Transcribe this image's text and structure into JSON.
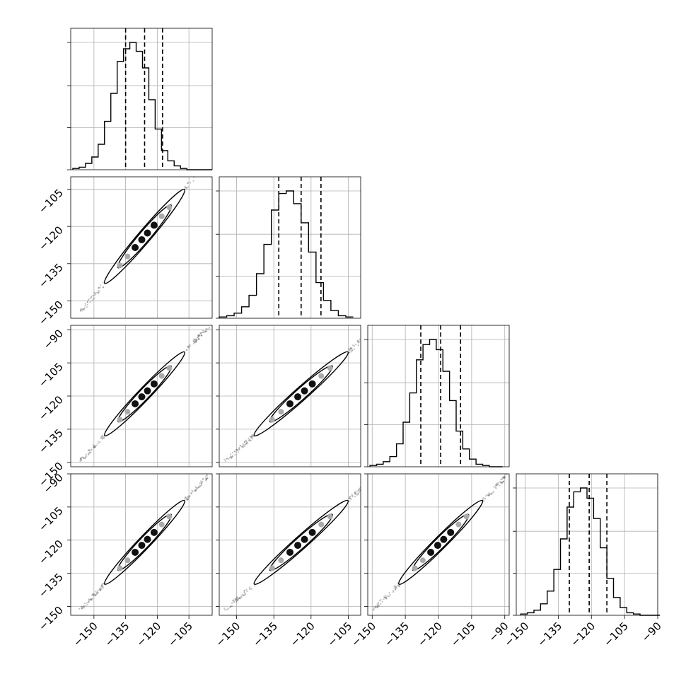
{
  "chart_data": {
    "type": "corner",
    "n_params": 4,
    "grid": true,
    "axis_ranges": [
      [
        -161,
        -94
      ],
      [
        -157,
        -100
      ],
      [
        -152,
        -88
      ],
      [
        -154,
        -90
      ]
    ],
    "bottom_ticks": [
      [
        -150,
        -135,
        -120,
        -105
      ],
      [
        -150,
        -135,
        -120,
        -105
      ],
      [
        -150,
        -135,
        -120,
        -105,
        -90
      ],
      [
        -150,
        -135,
        -120,
        -105,
        -90
      ]
    ],
    "left_ticks": {
      "row_1": [
        -105,
        -120,
        -135,
        -150
      ],
      "row_2": [
        -90,
        -105,
        -120,
        -135,
        -150
      ],
      "row_3": [
        -90,
        -105,
        -120,
        -135,
        -150
      ]
    },
    "tick_labels": {
      "bottom": [
        [
          "−150",
          "−135",
          "−120",
          "−105"
        ],
        [
          "−150",
          "−135",
          "−120",
          "−105"
        ],
        [
          "−150",
          "−135",
          "−120",
          "−105",
          "−90"
        ],
        [
          "−150",
          "−135",
          "−120",
          "−105",
          "−90"
        ]
      ],
      "left": {
        "row_1": [
          "−105",
          "−120",
          "−135",
          "−150"
        ],
        "row_2": [
          "−90",
          "−105",
          "−120",
          "−135",
          "−150"
        ],
        "row_3": [
          "−90",
          "−105",
          "−120",
          "−135",
          "−150"
        ]
      }
    },
    "histograms": [
      {
        "edges_start": -160,
        "bin_width": 3,
        "counts": [
          1,
          2,
          5,
          10,
          20,
          38,
          60,
          85,
          95,
          100,
          93,
          80,
          55,
          32,
          15,
          7,
          3,
          1,
          0,
          0,
          0,
          0
        ]
      },
      {
        "edges_start": -157,
        "bin_width": 3,
        "counts": [
          1,
          2,
          4,
          9,
          18,
          35,
          58,
          85,
          98,
          100,
          90,
          75,
          52,
          28,
          14,
          6,
          2,
          1
        ]
      },
      {
        "edges_start": -151,
        "bin_width": 3,
        "counts": [
          1,
          2,
          4,
          8,
          18,
          35,
          58,
          84,
          96,
          100,
          92,
          75,
          52,
          28,
          14,
          6,
          2,
          1,
          0,
          0
        ]
      },
      {
        "edges_start": -152,
        "bin_width": 3,
        "counts": [
          1,
          2,
          4,
          9,
          19,
          36,
          60,
          85,
          97,
          100,
          92,
          76,
          53,
          29,
          14,
          6,
          2,
          1,
          0,
          0,
          0
        ]
      }
    ],
    "quantiles": [
      [
        -135,
        -126,
        -117.5
      ],
      [
        -133,
        -124,
        -116
      ],
      [
        -128,
        -119,
        -110
      ],
      [
        -130,
        -121,
        -113
      ]
    ],
    "means": [
      -126,
      -124,
      -119,
      -121
    ],
    "sigma": 9
  }
}
